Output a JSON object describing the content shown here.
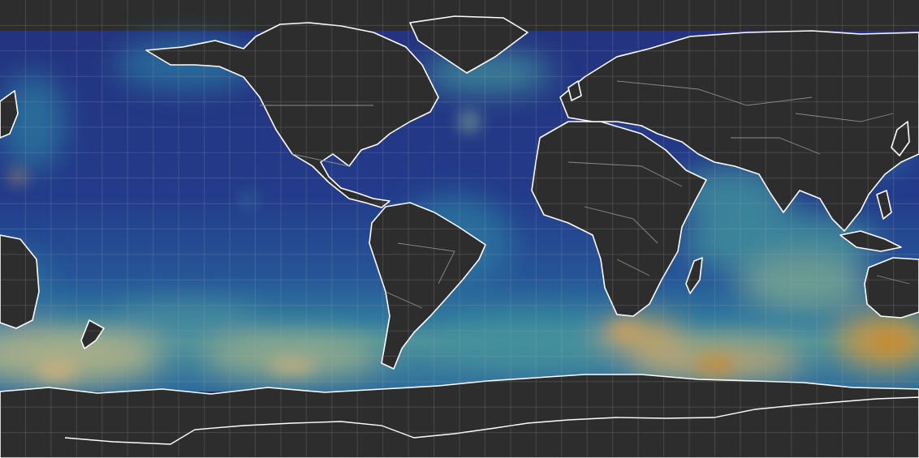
{
  "map": {
    "projection": "equirectangular",
    "layer": "ocean-scalar-field",
    "land_color": "#2d2d2d",
    "coastline_color": "#ffffff",
    "border_color": "#8a8a8a",
    "graticule_color": "#4a4a4a",
    "colormap": [
      "#1f2a6e",
      "#24398a",
      "#25569a",
      "#2a749f",
      "#3f8f9c",
      "#79a893",
      "#b9b585",
      "#d7a25a",
      "#c68a32"
    ],
    "graticule": true,
    "labels_shown": false
  }
}
